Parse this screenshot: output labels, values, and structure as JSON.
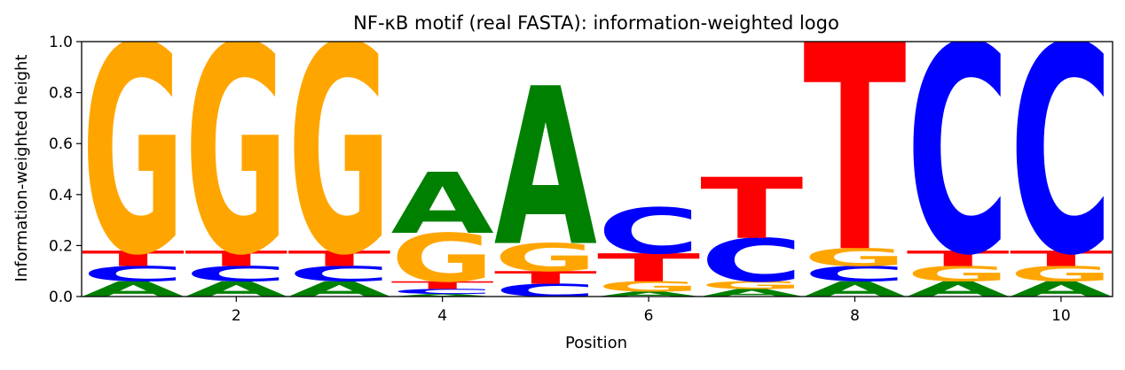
{
  "chart_data": {
    "type": "bar",
    "title": "NF-κB motif (real FASTA): information-weighted logo",
    "xlabel": "Position",
    "ylabel": "Information-weighted height",
    "xlim": [
      0.5,
      10.5
    ],
    "ylim": [
      0,
      1.0
    ],
    "x_ticks": [
      2,
      4,
      6,
      8,
      10
    ],
    "y_ticks": [
      0.0,
      0.2,
      0.4,
      0.6,
      0.8,
      1.0
    ],
    "colors": {
      "A": "#008000",
      "C": "#0000ff",
      "G": "#ffa500",
      "T": "#ff0000"
    },
    "positions": [
      {
        "position": 1,
        "stack": [
          {
            "letter": "A",
            "height": 0.06
          },
          {
            "letter": "C",
            "height": 0.06
          },
          {
            "letter": "T",
            "height": 0.06
          },
          {
            "letter": "G",
            "height": 0.82
          }
        ]
      },
      {
        "position": 2,
        "stack": [
          {
            "letter": "A",
            "height": 0.06
          },
          {
            "letter": "C",
            "height": 0.06
          },
          {
            "letter": "T",
            "height": 0.06
          },
          {
            "letter": "G",
            "height": 0.82
          }
        ]
      },
      {
        "position": 3,
        "stack": [
          {
            "letter": "A",
            "height": 0.06
          },
          {
            "letter": "C",
            "height": 0.06
          },
          {
            "letter": "T",
            "height": 0.06
          },
          {
            "letter": "G",
            "height": 0.82
          }
        ]
      },
      {
        "position": 4,
        "stack": [
          {
            "letter": "A",
            "height": 0.01
          },
          {
            "letter": "C",
            "height": 0.02
          },
          {
            "letter": "T",
            "height": 0.03
          },
          {
            "letter": "G",
            "height": 0.19
          },
          {
            "letter": "A",
            "height": 0.24
          }
        ]
      },
      {
        "position": 5,
        "stack": [
          {
            "letter": "C",
            "height": 0.05
          },
          {
            "letter": "T",
            "height": 0.05
          },
          {
            "letter": "G",
            "height": 0.11
          },
          {
            "letter": "A",
            "height": 0.62
          }
        ]
      },
      {
        "position": 6,
        "stack": [
          {
            "letter": "A",
            "height": 0.02
          },
          {
            "letter": "G",
            "height": 0.04
          },
          {
            "letter": "T",
            "height": 0.11
          },
          {
            "letter": "C",
            "height": 0.18
          }
        ]
      },
      {
        "position": 7,
        "stack": [
          {
            "letter": "A",
            "height": 0.03
          },
          {
            "letter": "G",
            "height": 0.03
          },
          {
            "letter": "C",
            "height": 0.17
          },
          {
            "letter": "T",
            "height": 0.24
          }
        ]
      },
      {
        "position": 8,
        "stack": [
          {
            "letter": "A",
            "height": 0.06
          },
          {
            "letter": "C",
            "height": 0.06
          },
          {
            "letter": "G",
            "height": 0.07
          },
          {
            "letter": "T",
            "height": 0.81
          }
        ]
      },
      {
        "position": 9,
        "stack": [
          {
            "letter": "A",
            "height": 0.06
          },
          {
            "letter": "G",
            "height": 0.06
          },
          {
            "letter": "T",
            "height": 0.06
          },
          {
            "letter": "C",
            "height": 0.82
          }
        ]
      },
      {
        "position": 10,
        "stack": [
          {
            "letter": "A",
            "height": 0.06
          },
          {
            "letter": "G",
            "height": 0.06
          },
          {
            "letter": "T",
            "height": 0.06
          },
          {
            "letter": "C",
            "height": 0.82
          }
        ]
      }
    ]
  }
}
